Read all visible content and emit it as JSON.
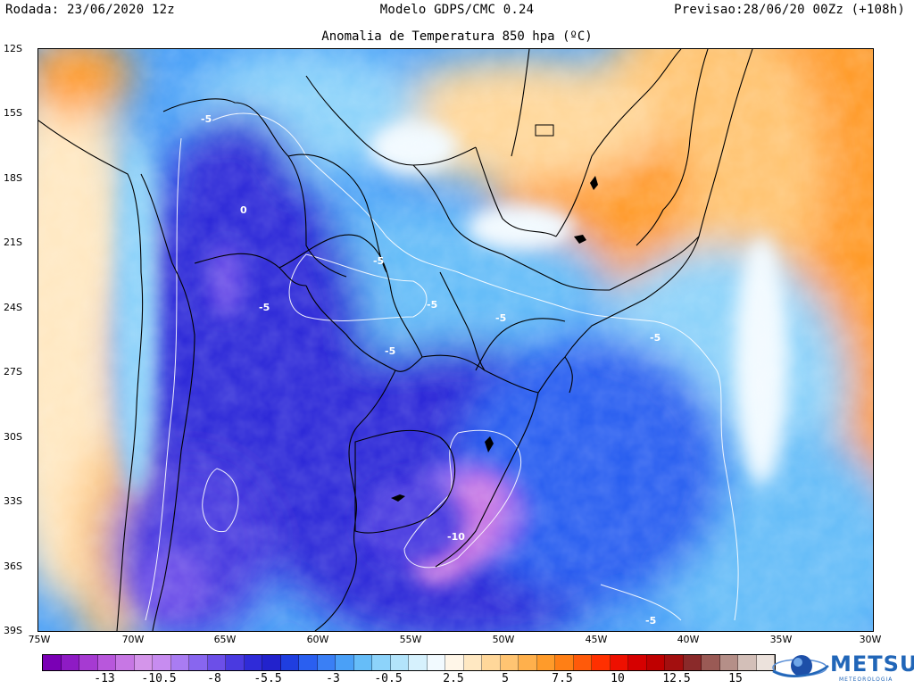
{
  "header": {
    "left": "Rodada: 23/06/2020 12z",
    "center": "Modelo GDPS/CMC 0.24",
    "right": "Previsao:28/06/20 00Zz (+108h)"
  },
  "subtitle": "Anomalia de Temperatura 850 hpa (ºC)",
  "map": {
    "lat_labels": [
      "12S",
      "15S",
      "18S",
      "21S",
      "24S",
      "27S",
      "30S",
      "33S",
      "36S",
      "39S"
    ],
    "lon_labels": [
      "75W",
      "70W",
      "65W",
      "60W",
      "55W",
      "50W",
      "45W",
      "40W",
      "35W",
      "30W"
    ],
    "contour_labels": [
      {
        "text": "-5",
        "id": "c1"
      },
      {
        "text": "0",
        "id": "c2"
      },
      {
        "text": "-5",
        "id": "c3"
      },
      {
        "text": "-5",
        "id": "c4"
      },
      {
        "text": "-5",
        "id": "c5"
      },
      {
        "text": "-5",
        "id": "c6"
      },
      {
        "text": "-5",
        "id": "c7"
      },
      {
        "text": "-5",
        "id": "c8"
      },
      {
        "text": "-10",
        "id": "c9"
      },
      {
        "text": "-5",
        "id": "c10"
      }
    ]
  },
  "legend": {
    "colors": [
      "#7a00b5",
      "#8e1bc4",
      "#a63ad2",
      "#b857dc",
      "#c777e4",
      "#d495ea",
      "#c78cf0",
      "#a97cf2",
      "#8866ef",
      "#6c4fe8",
      "#4a3ae0",
      "#2f2bd8",
      "#2222cc",
      "#1f3ee0",
      "#2a5ff0",
      "#3a7ff5",
      "#4aa0f7",
      "#66bdf8",
      "#8dd3fa",
      "#b3e4fb",
      "#d6f1fd",
      "#f2faff",
      "#fff6e8",
      "#ffe8c2",
      "#ffd79a",
      "#ffc472",
      "#ffb04c",
      "#ff9b2a",
      "#ff7f15",
      "#ff5a0a",
      "#ff3000",
      "#ee1000",
      "#d60000",
      "#bf0000",
      "#a30f0f",
      "#8a2a2a",
      "#9a5a55",
      "#b58f88",
      "#d3bfb8",
      "#ece2dc"
    ],
    "labels": [
      "-13",
      "-10.5",
      "-8",
      "-5.5",
      "-3",
      "-0.5",
      "2.5",
      "5",
      "7.5",
      "10",
      "12.5",
      "15"
    ]
  },
  "brand": {
    "name": "METSUL",
    "tagline": "METEOROLOGIA"
  }
}
